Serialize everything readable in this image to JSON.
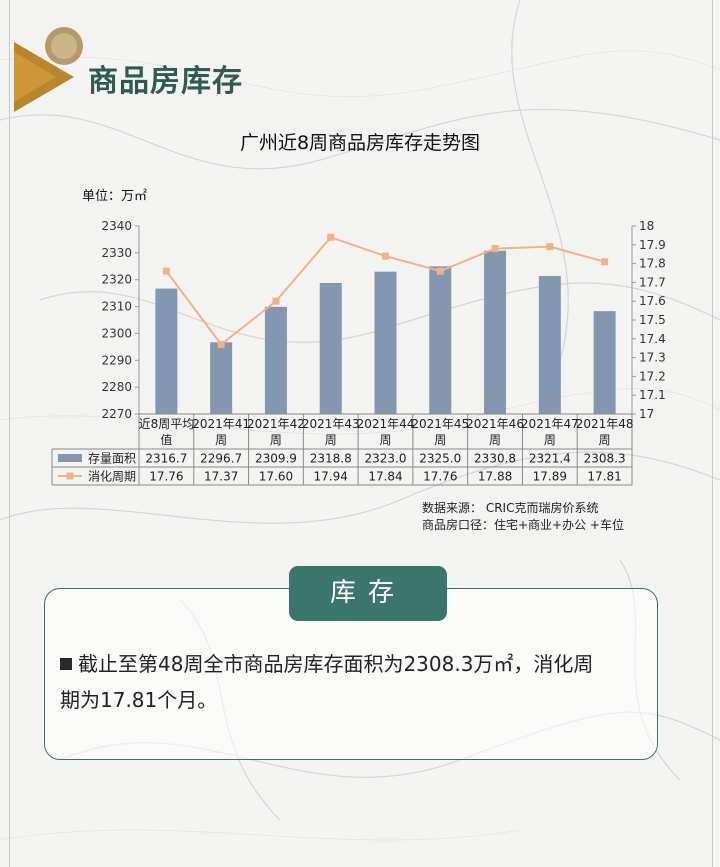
{
  "header": {
    "title": "商品房库存"
  },
  "chart_title": "广州近8周商品房库存走势图",
  "unit_label": "单位：万㎡",
  "chart_data": {
    "type": "bar+line",
    "categories": [
      "近8周平均值",
      "2021年41周",
      "2021年42周",
      "2021年43周",
      "2021年44周",
      "2021年45周",
      "2021年46周",
      "2021年47周",
      "2021年48周"
    ],
    "category_lines": [
      [
        "近8周平均",
        "值"
      ],
      [
        "2021年41",
        "周"
      ],
      [
        "2021年42",
        "周"
      ],
      [
        "2021年43",
        "周"
      ],
      [
        "2021年44",
        "周"
      ],
      [
        "2021年45",
        "周"
      ],
      [
        "2021年46",
        "周"
      ],
      [
        "2021年47",
        "周"
      ],
      [
        "2021年48",
        "周"
      ]
    ],
    "series": [
      {
        "name": "存量面积",
        "type": "bar",
        "axis": "left",
        "color": "#8497b0",
        "values": [
          2316.7,
          2296.7,
          2309.9,
          2318.8,
          2323.0,
          2325.0,
          2330.8,
          2321.4,
          2308.3
        ],
        "labels": [
          "2316.7",
          "2296.7",
          "2309.9",
          "2318.8",
          "2323.0",
          "2325.0",
          "2330.8",
          "2321.4",
          "2308.3"
        ]
      },
      {
        "name": "消化周期",
        "type": "line",
        "axis": "right",
        "color": "#f4b183",
        "values": [
          17.76,
          17.37,
          17.6,
          17.94,
          17.84,
          17.76,
          17.88,
          17.89,
          17.81
        ],
        "labels": [
          "17.76",
          "17.37",
          "17.60",
          "17.94",
          "17.84",
          "17.76",
          "17.88",
          "17.89",
          "17.81"
        ]
      }
    ],
    "y_left": {
      "range": [
        2270,
        2340
      ],
      "ticks": [
        {
          "v": 2270,
          "label": "2270"
        },
        {
          "v": 2280,
          "label": "2280"
        },
        {
          "v": 2290,
          "label": "2290"
        },
        {
          "v": 2300,
          "label": "2300"
        },
        {
          "v": 2310,
          "label": "2310"
        },
        {
          "v": 2320,
          "label": "2320"
        },
        {
          "v": 2330,
          "label": "2330"
        },
        {
          "v": 2340,
          "label": "2340"
        }
      ]
    },
    "y_right": {
      "range": [
        17.0,
        18.0
      ],
      "ticks": [
        {
          "v": 17.0,
          "label": "17"
        },
        {
          "v": 17.1,
          "label": "17.1"
        },
        {
          "v": 17.2,
          "label": "17.2"
        },
        {
          "v": 17.3,
          "label": "17.3"
        },
        {
          "v": 17.4,
          "label": "17.4"
        },
        {
          "v": 17.5,
          "label": "17.5"
        },
        {
          "v": 17.6,
          "label": "17.6"
        },
        {
          "v": 17.7,
          "label": "17.7"
        },
        {
          "v": 17.8,
          "label": "17.8"
        },
        {
          "v": 17.9,
          "label": "17.9"
        },
        {
          "v": 18.0,
          "label": "18"
        }
      ]
    },
    "grid": false,
    "legend": "data-table"
  },
  "source": {
    "line1": "数据来源： CRIC克而瑞房价系统",
    "line2": "商品房口径：住宅+商业+办公 +车位"
  },
  "section_tag": "库存",
  "summary": {
    "line1": "截止至第48周全市商品房库存面积为2308.3万㎡，消化周",
    "line2": "期为17.81个月。"
  },
  "colors": {
    "accent": "#3b766c",
    "header_text": "#2f5b53",
    "bar": "#8497b0",
    "line": "#f4b183",
    "gold": "#b8862b"
  }
}
